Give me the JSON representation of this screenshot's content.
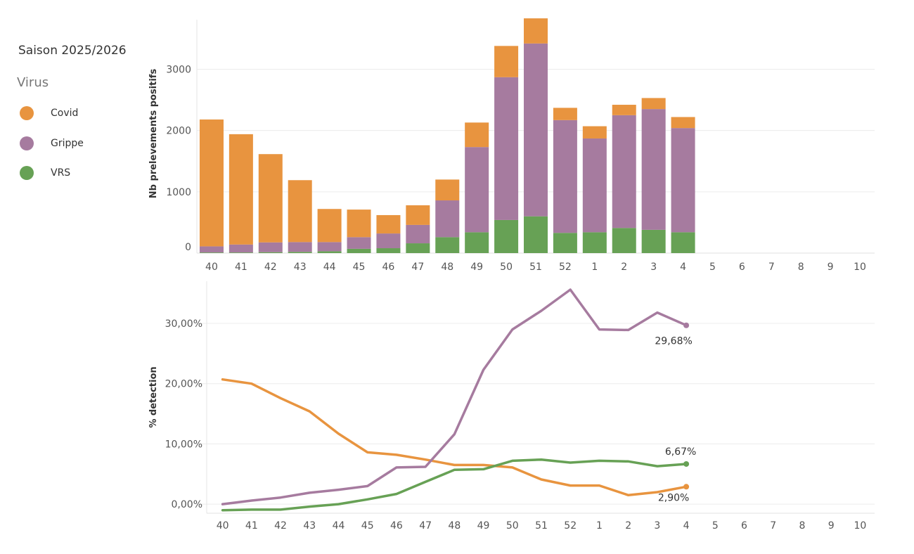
{
  "legend": {
    "season": "Saison 2025/2026",
    "title": "Virus",
    "items": [
      {
        "label": "Covid",
        "color": "#E8943F"
      },
      {
        "label": "Grippe",
        "color": "#A67B9F"
      },
      {
        "label": "VRS",
        "color": "#67A155"
      }
    ]
  },
  "chart_data": [
    {
      "type": "bar",
      "stacked": true,
      "ylabel": "Nb prelevements positifs",
      "xlabel": "",
      "ylim": [
        0,
        3900
      ],
      "yticks": [
        "0",
        "1000",
        "2000",
        "3000"
      ],
      "categories": [
        "40",
        "41",
        "42",
        "43",
        "44",
        "45",
        "46",
        "47",
        "48",
        "49",
        "50",
        "51",
        "52",
        "1",
        "2",
        "3",
        "4",
        "5",
        "6",
        "7",
        "8",
        "9",
        "10"
      ],
      "grid": true,
      "series": [
        {
          "name": "VRS",
          "color": "#67A155",
          "values": [
            10,
            10,
            15,
            20,
            30,
            70,
            80,
            160,
            260,
            340,
            540,
            600,
            330,
            340,
            410,
            380,
            340,
            null,
            null,
            null,
            null,
            null,
            null
          ]
        },
        {
          "name": "Grippe",
          "color": "#A67B9F",
          "values": [
            100,
            130,
            160,
            160,
            150,
            190,
            240,
            300,
            600,
            1390,
            2330,
            2820,
            1840,
            1530,
            1840,
            1970,
            1700,
            null,
            null,
            null,
            null,
            null,
            null
          ]
        },
        {
          "name": "Covid",
          "color": "#E8943F",
          "values": [
            2070,
            1800,
            1440,
            1010,
            540,
            450,
            300,
            320,
            340,
            400,
            510,
            410,
            200,
            200,
            170,
            180,
            180,
            null,
            null,
            null,
            null,
            null,
            null
          ]
        }
      ]
    },
    {
      "type": "line",
      "ylabel": "% detection",
      "xlabel": "",
      "ylim": [
        -1.5,
        37
      ],
      "yticks": [
        "0,00%",
        "10,00%",
        "20,00%",
        "30,00%"
      ],
      "categories": [
        "40",
        "41",
        "42",
        "43",
        "44",
        "45",
        "46",
        "47",
        "48",
        "49",
        "50",
        "51",
        "52",
        "1",
        "2",
        "3",
        "4",
        "5",
        "6",
        "7",
        "8",
        "9",
        "10"
      ],
      "grid": true,
      "series": [
        {
          "name": "Covid",
          "color": "#E8943F",
          "values": [
            20.7,
            20.0,
            17.6,
            15.4,
            11.7,
            8.6,
            8.2,
            7.4,
            6.5,
            6.5,
            6.1,
            4.1,
            3.1,
            3.1,
            1.5,
            2.0,
            2.9,
            null,
            null,
            null,
            null,
            null,
            null
          ],
          "end_label": "2,90%"
        },
        {
          "name": "Grippe",
          "color": "#A67B9F",
          "values": [
            0.0,
            0.6,
            1.1,
            1.9,
            2.4,
            3.0,
            6.1,
            6.2,
            11.6,
            22.3,
            29.0,
            32.1,
            35.6,
            29.0,
            28.9,
            31.8,
            29.68,
            null,
            null,
            null,
            null,
            null,
            null
          ],
          "end_label": "29,68%"
        },
        {
          "name": "VRS",
          "color": "#67A155",
          "values": [
            -1.0,
            -0.9,
            -0.9,
            -0.4,
            0.0,
            0.8,
            1.7,
            3.7,
            5.7,
            5.8,
            7.2,
            7.4,
            6.9,
            7.2,
            7.1,
            6.3,
            6.67,
            null,
            null,
            null,
            null,
            null,
            null
          ],
          "end_label": "6,67%"
        }
      ]
    }
  ]
}
